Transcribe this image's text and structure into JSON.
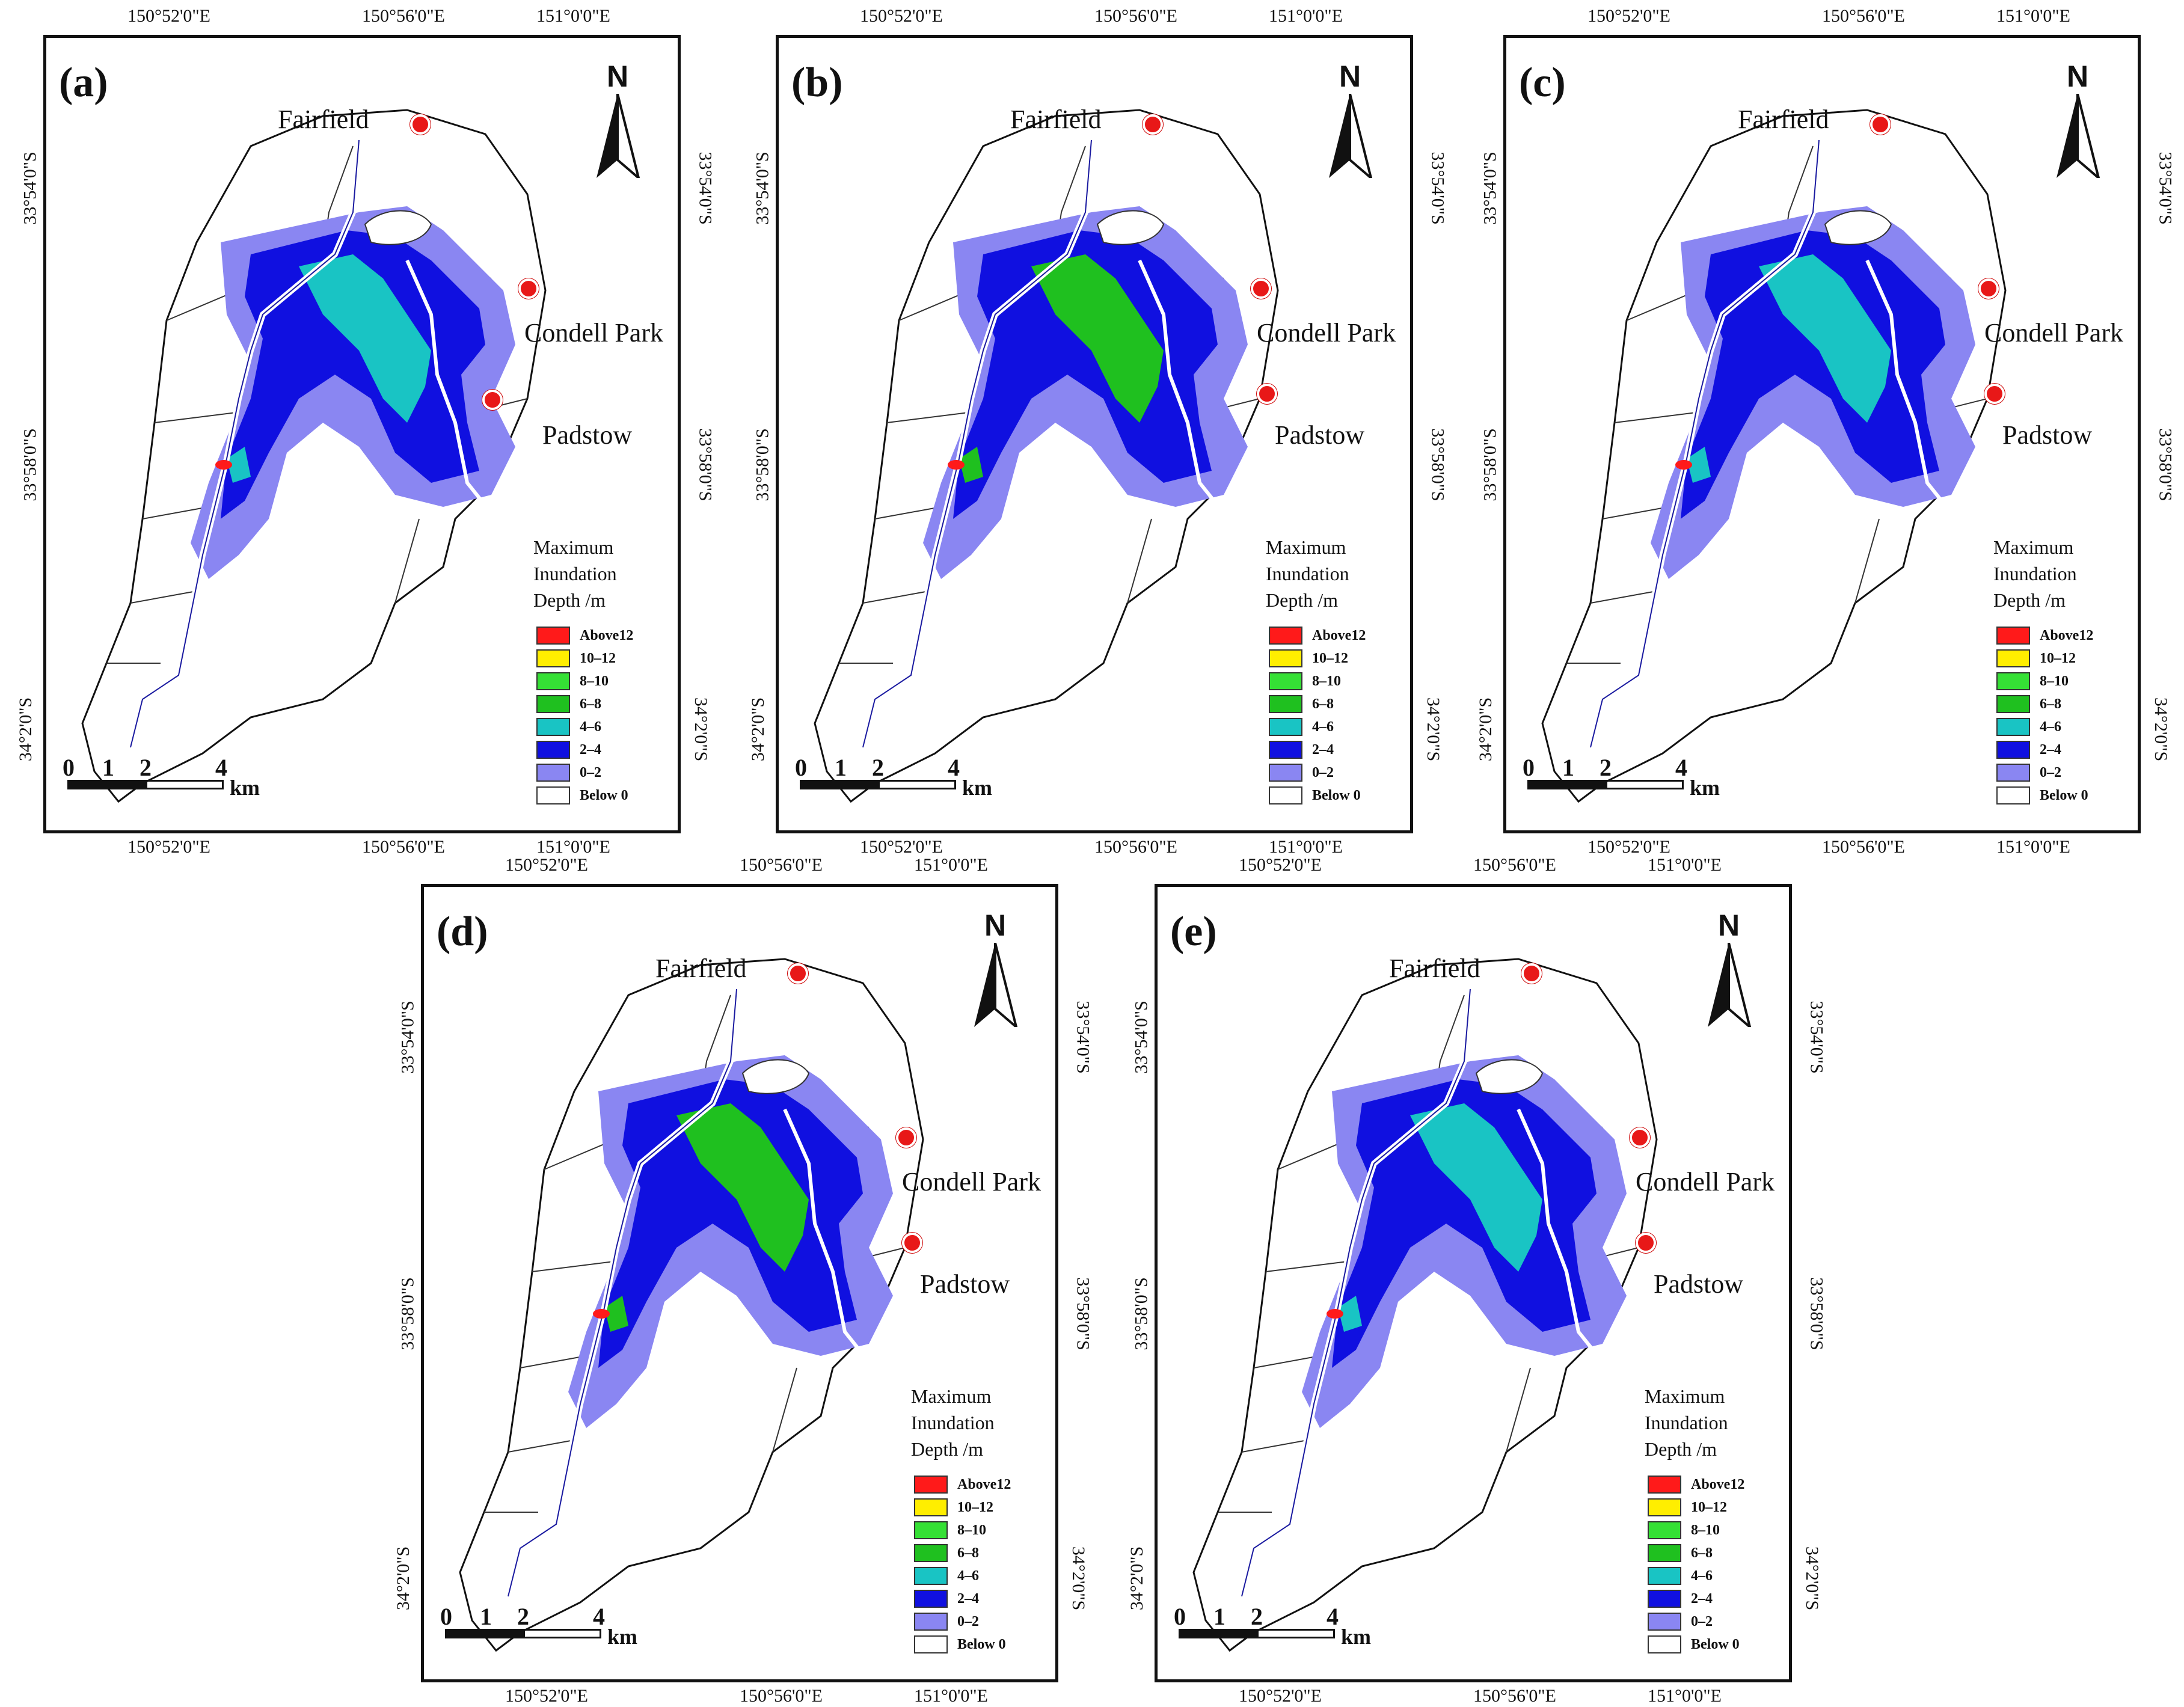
{
  "panels": [
    {
      "label": "(a)"
    },
    {
      "label": "(b)"
    },
    {
      "label": "(c)"
    },
    {
      "label": "(d)"
    },
    {
      "label": "(e)"
    }
  ],
  "coords": {
    "top": [
      "150°52'0\"E",
      "150°56'0\"E",
      "151°0'0\"E"
    ],
    "bottom": [
      "150°52'0\"E",
      "150°56'0\"E",
      "151°0'0\"E"
    ],
    "left": [
      "33°54'0\"S",
      "33°58'0\"S",
      "34°2'0\"S"
    ],
    "right": [
      "33°54'0\"S",
      "33°58'0\"S",
      "34°2'0\"S"
    ]
  },
  "places": {
    "fairfield": "Fairfield",
    "condell_park": "Condell Park",
    "padstow": "Padstow"
  },
  "north": "N",
  "legend": {
    "title_lines": [
      "Maximum",
      "Inundation",
      "Depth /m"
    ],
    "items": [
      {
        "label": "Above12",
        "color": "#ff1a1a"
      },
      {
        "label": "10–12",
        "color": "#ffee00"
      },
      {
        "label": "8–10",
        "color": "#35e035"
      },
      {
        "label": "6–8",
        "color": "#1fc01f"
      },
      {
        "label": "4–6",
        "color": "#19c4c4"
      },
      {
        "label": "2–4",
        "color": "#1010e0"
      },
      {
        "label": "0–2",
        "color": "#8a86f2"
      },
      {
        "label": "Below 0",
        "color": "#ffffff"
      }
    ]
  },
  "scale": {
    "ticks": [
      "0",
      "1",
      "2",
      "4"
    ],
    "unit": "km"
  },
  "colors": {
    "river": "#ffffff",
    "boundary": "#111111",
    "pin": "#e81818"
  }
}
